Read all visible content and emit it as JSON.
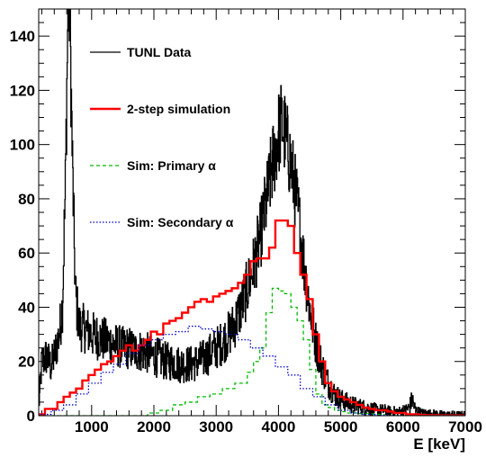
{
  "chart_data": {
    "type": "line",
    "title": "",
    "xlabel": "E [keV]",
    "ylabel": "",
    "xlim": [
      150,
      7000
    ],
    "ylim": [
      0,
      150
    ],
    "x_ticks": [
      1000,
      2000,
      3000,
      4000,
      5000,
      6000,
      7000
    ],
    "y_ticks": [
      0,
      20,
      40,
      60,
      80,
      100,
      120,
      140
    ],
    "grid": false,
    "legend_position": "top-left",
    "series": [
      {
        "name": "TUNL Data",
        "color": "#000000",
        "dash": "solid",
        "style": "noisy",
        "points": [
          [
            150,
            2
          ],
          [
            200,
            20
          ],
          [
            280,
            22
          ],
          [
            350,
            18
          ],
          [
            420,
            24
          ],
          [
            480,
            30
          ],
          [
            530,
            40
          ],
          [
            580,
            85
          ],
          [
            620,
            150
          ],
          [
            650,
            150
          ],
          [
            690,
            95
          ],
          [
            740,
            45
          ],
          [
            800,
            33
          ],
          [
            900,
            32
          ],
          [
            1000,
            30
          ],
          [
            1100,
            29
          ],
          [
            1200,
            28
          ],
          [
            1300,
            27
          ],
          [
            1400,
            26
          ],
          [
            1500,
            25
          ],
          [
            1600,
            25
          ],
          [
            1700,
            24
          ],
          [
            1800,
            24
          ],
          [
            1900,
            23
          ],
          [
            2000,
            22
          ],
          [
            2100,
            21
          ],
          [
            2200,
            20
          ],
          [
            2300,
            20
          ],
          [
            2400,
            19
          ],
          [
            2500,
            19
          ],
          [
            2600,
            19
          ],
          [
            2700,
            20
          ],
          [
            2800,
            21
          ],
          [
            2900,
            23
          ],
          [
            3000,
            25
          ],
          [
            3100,
            27
          ],
          [
            3200,
            30
          ],
          [
            3300,
            34
          ],
          [
            3400,
            40
          ],
          [
            3500,
            47
          ],
          [
            3600,
            55
          ],
          [
            3700,
            65
          ],
          [
            3800,
            78
          ],
          [
            3900,
            92
          ],
          [
            4000,
            104
          ],
          [
            4050,
            108
          ],
          [
            4100,
            104
          ],
          [
            4200,
            93
          ],
          [
            4300,
            78
          ],
          [
            4400,
            58
          ],
          [
            4500,
            40
          ],
          [
            4600,
            27
          ],
          [
            4700,
            18
          ],
          [
            4800,
            12
          ],
          [
            4900,
            8
          ],
          [
            5000,
            6
          ],
          [
            5100,
            5
          ],
          [
            5200,
            4
          ],
          [
            5300,
            3.5
          ],
          [
            5400,
            3
          ],
          [
            5500,
            2.5
          ],
          [
            5600,
            2
          ],
          [
            5700,
            2
          ],
          [
            5800,
            1.5
          ],
          [
            5900,
            1.5
          ],
          [
            6000,
            1.5
          ],
          [
            6100,
            3
          ],
          [
            6150,
            6
          ],
          [
            6200,
            2
          ],
          [
            6300,
            1
          ],
          [
            6500,
            0.8
          ],
          [
            6700,
            0.5
          ],
          [
            7000,
            0.5
          ]
        ]
      },
      {
        "name": "2-step simulation",
        "color": "#ff0000",
        "dash": "solid",
        "style": "step",
        "bin_edges": [
          150,
          250,
          350,
          450,
          550,
          650,
          750,
          850,
          950,
          1050,
          1150,
          1250,
          1350,
          1450,
          1550,
          1650,
          1750,
          1850,
          1950,
          2050,
          2150,
          2250,
          2350,
          2450,
          2550,
          2650,
          2750,
          2850,
          2950,
          3050,
          3150,
          3250,
          3350,
          3450,
          3550,
          3650,
          3750,
          3850,
          3950,
          4050,
          4150,
          4250,
          4350,
          4450,
          4550,
          4650,
          4750,
          4850,
          4950,
          5050,
          5150,
          5250,
          5350,
          5450,
          5550,
          5650,
          5750,
          5850,
          5950,
          6050,
          6150,
          6250,
          6350,
          6450,
          6550,
          6650,
          6750,
          6850,
          6950,
          7000
        ],
        "values": [
          0.5,
          2.5,
          2.5,
          5,
          7,
          8.5,
          10,
          13,
          15,
          17,
          19,
          20,
          22,
          24,
          26,
          24,
          26,
          28,
          31,
          30,
          34,
          35,
          36,
          38,
          40,
          42,
          43,
          42,
          44,
          45,
          46,
          47,
          49,
          52,
          57,
          58,
          58,
          62,
          72,
          72,
          70,
          60,
          52,
          43,
          30,
          20,
          12,
          9,
          7,
          6,
          5,
          4,
          3,
          2.5,
          2,
          2,
          1.5,
          1,
          1,
          0.5,
          0.5,
          0.3,
          0.2,
          0.2,
          0.1,
          0.1,
          0.1,
          0.1,
          0
        ]
      },
      {
        "name": "Sim: Primary α",
        "color": "#00bb00",
        "dash": "dashed",
        "style": "step",
        "bin_edges": [
          150,
          1900,
          2100,
          2300,
          2500,
          2700,
          2900,
          3100,
          3300,
          3500,
          3600,
          3700,
          3800,
          3900,
          4000,
          4100,
          4200,
          4300,
          4400,
          4500,
          4600,
          4700,
          4800,
          4900,
          5000,
          5100,
          5300,
          5500,
          5700,
          7000
        ],
        "values": [
          0,
          1,
          2,
          4,
          5,
          7,
          8,
          10,
          12,
          16,
          20,
          25,
          38,
          47,
          46,
          45,
          40,
          35,
          28,
          17,
          8,
          4,
          3,
          2,
          1.5,
          1,
          0.8,
          0.5,
          0
        ]
      },
      {
        "name": "Sim: Secondary α",
        "color": "#0000cc",
        "dash": "dotted",
        "style": "step",
        "bin_edges": [
          150,
          350,
          550,
          750,
          950,
          1150,
          1350,
          1550,
          1750,
          1950,
          2150,
          2350,
          2550,
          2750,
          2950,
          3150,
          3350,
          3550,
          3750,
          3950,
          4150,
          4350,
          4550,
          4750,
          4950,
          5150,
          5350,
          5550,
          5750,
          7000
        ],
        "values": [
          0.5,
          2,
          4,
          8,
          12,
          16,
          19,
          23,
          26,
          28,
          30,
          31,
          33,
          32,
          31,
          30,
          28,
          25,
          22,
          18,
          15,
          10,
          7,
          4,
          2,
          1,
          0.5,
          0.2,
          0
        ]
      }
    ]
  }
}
